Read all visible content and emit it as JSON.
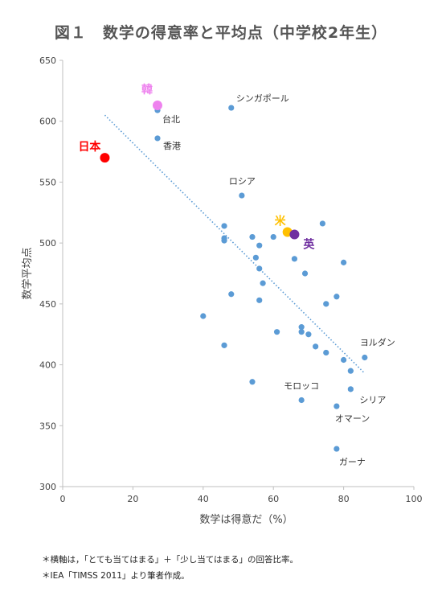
{
  "title": "図１　数学の得意率と平均点（中学校2年生）",
  "notes": [
    "＊横軸は，「とても当てはまる」＋「少し当てはまる」の回答比率。",
    "＊IEA「TIMSS 2011」より筆者作成。"
  ],
  "chart_data": {
    "type": "scatter",
    "xlabel": "数学は得意だ（%）",
    "ylabel": "数学平均点",
    "xlim": [
      0,
      100
    ],
    "ylim": [
      300,
      650
    ],
    "xticks": [
      0,
      20,
      40,
      60,
      80,
      100
    ],
    "yticks": [
      300,
      350,
      400,
      450,
      500,
      550,
      600,
      650
    ],
    "grid": false,
    "colors": {
      "points": "#5b9bd5",
      "trendline": "#5b9bd5",
      "japan": "#ff0000",
      "korea": "#ee82ee",
      "usa": "#ffc000",
      "uk": "#7030a0"
    },
    "highlighted": [
      {
        "label": "日本",
        "x": 12,
        "y": 570,
        "color": "#ff0000"
      },
      {
        "label": "韓",
        "x": 27,
        "y": 613,
        "color": "#ee82ee"
      },
      {
        "label": "米",
        "x": 64,
        "y": 509,
        "color": "#ffc000"
      },
      {
        "label": "英",
        "x": 66,
        "y": 507,
        "color": "#7030a0"
      }
    ],
    "labeled_points": [
      {
        "label": "シンガポール",
        "x": 48,
        "y": 611
      },
      {
        "label": "台北",
        "x": 27,
        "y": 609
      },
      {
        "label": "香港",
        "x": 27,
        "y": 586
      },
      {
        "label": "ロシア",
        "x": 51,
        "y": 539
      },
      {
        "label": "ヨルダン",
        "x": 86,
        "y": 406
      },
      {
        "label": "モロッコ",
        "x": 68,
        "y": 371
      },
      {
        "label": "シリア",
        "x": 82,
        "y": 380
      },
      {
        "label": "オマーン",
        "x": 78,
        "y": 366
      },
      {
        "label": "ガーナ",
        "x": 78,
        "y": 331
      }
    ],
    "other_points": [
      {
        "x": 46,
        "y": 514
      },
      {
        "x": 46,
        "y": 504
      },
      {
        "x": 46,
        "y": 502
      },
      {
        "x": 54,
        "y": 505
      },
      {
        "x": 56,
        "y": 498
      },
      {
        "x": 55,
        "y": 488
      },
      {
        "x": 56,
        "y": 479
      },
      {
        "x": 57,
        "y": 467
      },
      {
        "x": 56,
        "y": 453
      },
      {
        "x": 48,
        "y": 458
      },
      {
        "x": 40,
        "y": 440
      },
      {
        "x": 46,
        "y": 416
      },
      {
        "x": 54,
        "y": 386
      },
      {
        "x": 61,
        "y": 427
      },
      {
        "x": 60,
        "y": 505
      },
      {
        "x": 66,
        "y": 487
      },
      {
        "x": 69,
        "y": 475
      },
      {
        "x": 74,
        "y": 516
      },
      {
        "x": 80,
        "y": 484
      },
      {
        "x": 78,
        "y": 456
      },
      {
        "x": 75,
        "y": 450
      },
      {
        "x": 68,
        "y": 431
      },
      {
        "x": 68,
        "y": 427
      },
      {
        "x": 70,
        "y": 425
      },
      {
        "x": 72,
        "y": 415
      },
      {
        "x": 75,
        "y": 410
      },
      {
        "x": 80,
        "y": 404
      },
      {
        "x": 82,
        "y": 395
      }
    ],
    "trendline": {
      "x": [
        12,
        86
      ],
      "y": [
        605,
        393
      ]
    }
  }
}
